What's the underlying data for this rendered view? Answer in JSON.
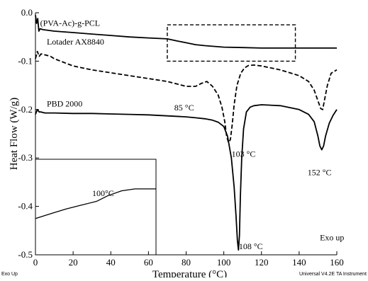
{
  "chart_data": {
    "type": "line",
    "xlabel": "Temperature (°C)",
    "ylabel": "Heat Flow (W/g)",
    "xlim": [
      0,
      160
    ],
    "ylim": [
      -0.5,
      0.0
    ],
    "x_ticks": [
      0,
      20,
      40,
      60,
      80,
      100,
      120,
      140,
      160
    ],
    "y_ticks": [
      0.0,
      -0.1,
      -0.2,
      -0.3,
      -0.4,
      -0.5
    ],
    "x_tick_labels": [
      "0",
      "20",
      "40",
      "60",
      "80",
      "100",
      "120",
      "140",
      "160"
    ],
    "y_tick_labels": [
      "0.0",
      "-0.1",
      "-0.2",
      "-0.3",
      "-0.4",
      "-0.5"
    ],
    "grid": false,
    "series": [
      {
        "name": "(PVA-Ac)-g-PCL",
        "style": "solid",
        "color": "#000000",
        "x": [
          0,
          0.6,
          1.2,
          1.8,
          2.5,
          4,
          10,
          20,
          30,
          40,
          50,
          60,
          70,
          75,
          80,
          85,
          90,
          100,
          110,
          120,
          130,
          140,
          150,
          160
        ],
        "y": [
          -0.005,
          -0.022,
          -0.012,
          -0.038,
          -0.033,
          -0.035,
          -0.038,
          -0.041,
          -0.044,
          -0.047,
          -0.05,
          -0.052,
          -0.054,
          -0.058,
          -0.062,
          -0.066,
          -0.068,
          -0.071,
          -0.072,
          -0.073,
          -0.073,
          -0.073,
          -0.073,
          -0.073
        ]
      },
      {
        "name": "Lotader AX8840",
        "style": "dashed",
        "color": "#000000",
        "x": [
          0,
          1,
          2,
          3,
          5,
          8,
          10,
          20,
          30,
          40,
          50,
          60,
          70,
          75,
          80,
          85,
          88,
          91,
          94,
          97,
          99,
          100.5,
          101.5,
          102.5,
          103.5,
          104.5,
          105.5,
          107,
          109,
          111,
          113,
          116,
          120,
          130,
          140,
          145,
          148,
          150,
          151.5,
          152.5,
          153.5,
          155,
          157,
          160
        ],
        "y": [
          -0.095,
          -0.08,
          -0.09,
          -0.085,
          -0.087,
          -0.09,
          -0.095,
          -0.11,
          -0.118,
          -0.124,
          -0.13,
          -0.136,
          -0.142,
          -0.147,
          -0.152,
          -0.152,
          -0.146,
          -0.142,
          -0.152,
          -0.17,
          -0.195,
          -0.225,
          -0.255,
          -0.268,
          -0.262,
          -0.23,
          -0.19,
          -0.15,
          -0.125,
          -0.114,
          -0.109,
          -0.108,
          -0.11,
          -0.118,
          -0.13,
          -0.142,
          -0.16,
          -0.182,
          -0.198,
          -0.2,
          -0.18,
          -0.15,
          -0.125,
          -0.118
        ]
      },
      {
        "name": "PBD 2000",
        "style": "solid",
        "color": "#000000",
        "x": [
          0,
          1,
          2,
          3,
          5,
          10,
          20,
          30,
          40,
          50,
          60,
          70,
          80,
          85,
          90,
          94,
          97,
          100,
          102,
          104,
          105.5,
          106.5,
          107.2,
          107.8,
          108.3,
          108.8,
          109.5,
          110.5,
          112,
          114,
          116,
          120,
          130,
          140,
          145,
          148,
          150,
          151,
          152,
          153,
          154,
          156,
          158,
          160
        ],
        "y": [
          -0.21,
          -0.2,
          -0.205,
          -0.205,
          -0.207,
          -0.207,
          -0.208,
          -0.208,
          -0.209,
          -0.21,
          -0.211,
          -0.213,
          -0.215,
          -0.217,
          -0.219,
          -0.222,
          -0.226,
          -0.235,
          -0.255,
          -0.3,
          -0.36,
          -0.42,
          -0.47,
          -0.49,
          -0.46,
          -0.38,
          -0.3,
          -0.24,
          -0.205,
          -0.195,
          -0.192,
          -0.19,
          -0.192,
          -0.2,
          -0.21,
          -0.225,
          -0.255,
          -0.275,
          -0.283,
          -0.275,
          -0.255,
          -0.228,
          -0.212,
          -0.2
        ]
      }
    ],
    "annotations": [
      {
        "text": "85 °C",
        "x": 85,
        "y": -0.152
      },
      {
        "text": "103 °C",
        "x": 103,
        "y": -0.268
      },
      {
        "text": "152 °C",
        "x": 152,
        "y": -0.283
      },
      {
        "text": "108 °C",
        "x": 108,
        "y": -0.49
      },
      {
        "text": "Exo  up",
        "x": 151,
        "y": -0.47
      }
    ],
    "zoom_box": {
      "x_range": [
        70,
        138
      ],
      "y_range": [
        -0.1,
        -0.025
      ]
    },
    "inset": {
      "label": "100°C",
      "x": [
        0,
        8,
        16,
        24,
        32,
        38,
        45,
        52,
        60,
        63
      ],
      "y": [
        0.62,
        0.57,
        0.52,
        0.48,
        0.44,
        0.38,
        0.33,
        0.31,
        0.31,
        0.31
      ]
    },
    "footer": {
      "left": "Exo Up",
      "right": "Universal V4.2E TA Instrument"
    }
  }
}
